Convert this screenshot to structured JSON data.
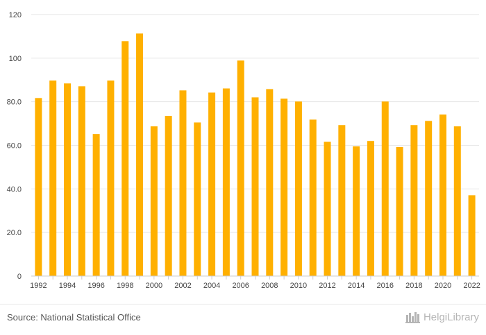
{
  "chart_data": {
    "type": "bar",
    "title": "",
    "xlabel": "",
    "ylabel": "",
    "ylim": [
      0,
      120
    ],
    "yticks": [
      0,
      20,
      40,
      60,
      80,
      100,
      120
    ],
    "ytick_labels": [
      "0",
      "20.0",
      "40.0",
      "60.0",
      "80.0",
      "100",
      "120"
    ],
    "xtick_labels_shown": [
      "1992",
      "1994",
      "1996",
      "1998",
      "2000",
      "2002",
      "2004",
      "2006",
      "2008",
      "2010",
      "2012",
      "2014",
      "2016",
      "2018",
      "2020",
      "2022"
    ],
    "grid": true,
    "legend": "none",
    "bar_color": "#FFB000",
    "categories": [
      "1992",
      "1993",
      "1994",
      "1995",
      "1996",
      "1997",
      "1998",
      "1999",
      "2000",
      "2001",
      "2002",
      "2003",
      "2004",
      "2005",
      "2006",
      "2007",
      "2008",
      "2009",
      "2010",
      "2011",
      "2012",
      "2013",
      "2014",
      "2015",
      "2016",
      "2017",
      "2018",
      "2019",
      "2020",
      "2021",
      "2022"
    ],
    "values": [
      81.7,
      89.7,
      88.4,
      87.1,
      65.2,
      89.7,
      107.8,
      111.3,
      68.7,
      73.5,
      85.2,
      70.5,
      84.2,
      86.1,
      98.9,
      82.0,
      85.8,
      81.4,
      80.1,
      71.8,
      61.6,
      69.3,
      59.5,
      62.0,
      80.1,
      59.2,
      69.3,
      71.2,
      74.1,
      68.7,
      37.1
    ]
  },
  "footer": {
    "source": "Source: National Statistical Office",
    "brand": "HelgiLibrary"
  },
  "colors": {
    "grid": "#e6e6e6",
    "axis": "#cccccc",
    "tick_text": "#444444",
    "brand": "#b5b5b5"
  },
  "icons": {
    "brand_logo": "helgi-library-logo-icon"
  }
}
